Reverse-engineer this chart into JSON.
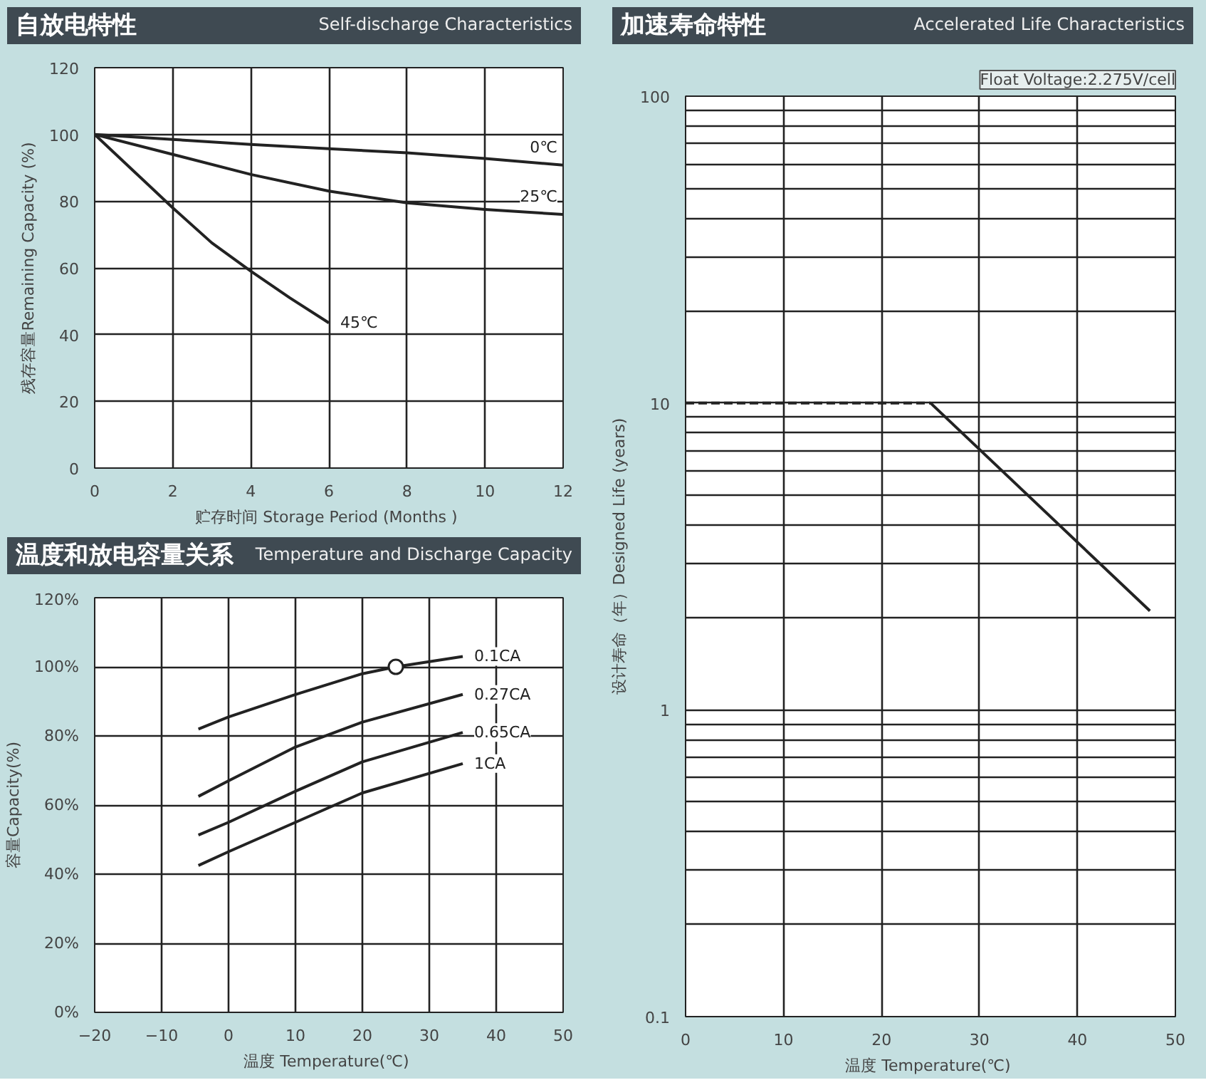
{
  "chart_data": [
    {
      "type": "line",
      "title": "自放电特性",
      "subtitle": "Self-discharge Characteristics",
      "xlabel": "贮存时间  Storage Period (Months )",
      "ylabel": "残存容量Remaining Capacity (%)",
      "series": [
        {
          "name": "0℃",
          "color": "#222222",
          "x": [
            0,
            2,
            4,
            6,
            8,
            10,
            12
          ],
          "values": [
            100,
            98.5,
            97,
            95.7,
            94.5,
            92.8,
            90.8
          ]
        },
        {
          "name": "25℃",
          "color": "#222222",
          "x": [
            0,
            2,
            4,
            6,
            8,
            10,
            12
          ],
          "values": [
            100,
            94,
            88,
            83,
            79.5,
            77.5,
            76
          ]
        },
        {
          "name": "45℃",
          "color": "#222222",
          "x": [
            0,
            1,
            2,
            3,
            4,
            5,
            6
          ],
          "values": [
            100,
            89,
            78,
            67.5,
            59,
            51,
            43.5
          ]
        }
      ],
      "xlim": [
        0,
        12
      ],
      "ylim": [
        0,
        120
      ],
      "xticks": [
        0,
        2,
        4,
        6,
        8,
        10,
        12
      ],
      "yticks": [
        0,
        20,
        40,
        60,
        80,
        100,
        120
      ],
      "grid": true
    },
    {
      "type": "line",
      "title": "温度和放电容量关系",
      "subtitle": "Temperature and Discharge Capacity",
      "xlabel": "温度  Temperature(℃)",
      "ylabel": "容量Capacity(%)",
      "series": [
        {
          "name": "0.1CA",
          "color": "#222222",
          "x": [
            -4.5,
            0,
            10,
            20,
            25,
            35
          ],
          "values": [
            82,
            85.5,
            92,
            98,
            100,
            103
          ]
        },
        {
          "name": "0.27CA",
          "color": "#222222",
          "x": [
            -4.5,
            0,
            10,
            20,
            35
          ],
          "values": [
            62.5,
            67,
            76.8,
            84,
            92
          ]
        },
        {
          "name": "0.65CA",
          "color": "#222222",
          "x": [
            -4.5,
            0,
            10,
            20,
            35
          ],
          "values": [
            51.3,
            55,
            64,
            72.5,
            81
          ]
        },
        {
          "name": "1CA",
          "color": "#222222",
          "x": [
            -4.5,
            0,
            10,
            20,
            35
          ],
          "values": [
            42.5,
            46.5,
            55,
            63.5,
            72
          ]
        },
        {
          "type": "scatter",
          "marker": "circle",
          "color": "#222222",
          "x": [
            25
          ],
          "values": [
            100
          ]
        }
      ],
      "xlim": [
        -20,
        50
      ],
      "ylim": [
        0,
        120
      ],
      "xticks": [
        -20,
        -10,
        0,
        10,
        20,
        30,
        40,
        50
      ],
      "yticks": [
        {
          "value": 0,
          "label": "0%"
        },
        {
          "value": 20,
          "label": "20%"
        },
        {
          "value": 40,
          "label": "40%"
        },
        {
          "value": 60,
          "label": "60%"
        },
        {
          "value": 80,
          "label": "80%"
        },
        {
          "value": 100,
          "label": "100%"
        },
        {
          "value": 120,
          "label": "120%"
        }
      ],
      "grid": true
    },
    {
      "type": "line",
      "title": "加速寿命特性",
      "subtitle": "Accelerated Life Characteristics",
      "xlabel": "温度  Temperature(℃)",
      "ylabel": "设计寿命（年）Designed Life (years)",
      "annotations": [
        "Float Voltage:2.275V/cell"
      ],
      "series": [
        {
          "color": "#222222",
          "line_style": "dashed",
          "x": [
            0,
            25
          ],
          "values": [
            10,
            10
          ]
        },
        {
          "color": "#222222",
          "line_style": "solid",
          "x": [
            25,
            47.4
          ],
          "values": [
            10,
            2.1
          ]
        }
      ],
      "log": "y",
      "xlim": [
        0,
        50
      ],
      "ylim": [
        0.1,
        100
      ],
      "xticks": [
        0,
        10,
        20,
        30,
        40,
        50
      ],
      "yticks": [
        0.1,
        {
          "value": 0.2,
          "label": null
        },
        {
          "value": 0.3,
          "label": null
        },
        {
          "value": 0.4,
          "label": null
        },
        {
          "value": 0.5,
          "label": null
        },
        {
          "value": 0.6,
          "label": null
        },
        {
          "value": 0.7,
          "label": null
        },
        {
          "value": 0.8,
          "label": null
        },
        {
          "value": 0.9,
          "label": null
        },
        1,
        {
          "value": 2,
          "label": null
        },
        {
          "value": 3,
          "label": null
        },
        {
          "value": 4,
          "label": null
        },
        {
          "value": 5,
          "label": null
        },
        {
          "value": 6,
          "label": null
        },
        {
          "value": 7,
          "label": null
        },
        {
          "value": 8,
          "label": null
        },
        {
          "value": 9,
          "label": null
        },
        10,
        {
          "value": 20,
          "label": null
        },
        {
          "value": 30,
          "label": null
        },
        {
          "value": 40,
          "label": null
        },
        {
          "value": 50,
          "label": null
        },
        {
          "value": 60,
          "label": null
        },
        {
          "value": 70,
          "label": null
        },
        {
          "value": 80,
          "label": null
        },
        {
          "value": 90,
          "label": null
        },
        100
      ],
      "grid": true
    }
  ]
}
